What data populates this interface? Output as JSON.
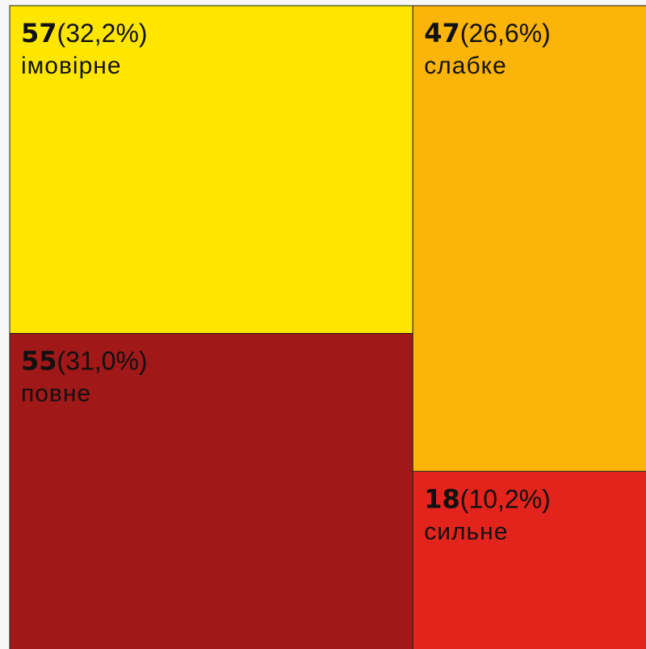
{
  "chart_data": {
    "type": "treemap",
    "categories": [
      "імовірне",
      "повне",
      "слабке",
      "сильне"
    ],
    "values": [
      57,
      55,
      47,
      18
    ],
    "share_labels": [
      "(32,2%)",
      "(31,0%)",
      "(26,6%)",
      "(10,2%)"
    ],
    "colors": [
      "#ffe600",
      "#a01818",
      "#fbb40a",
      "#e3241d"
    ]
  }
}
